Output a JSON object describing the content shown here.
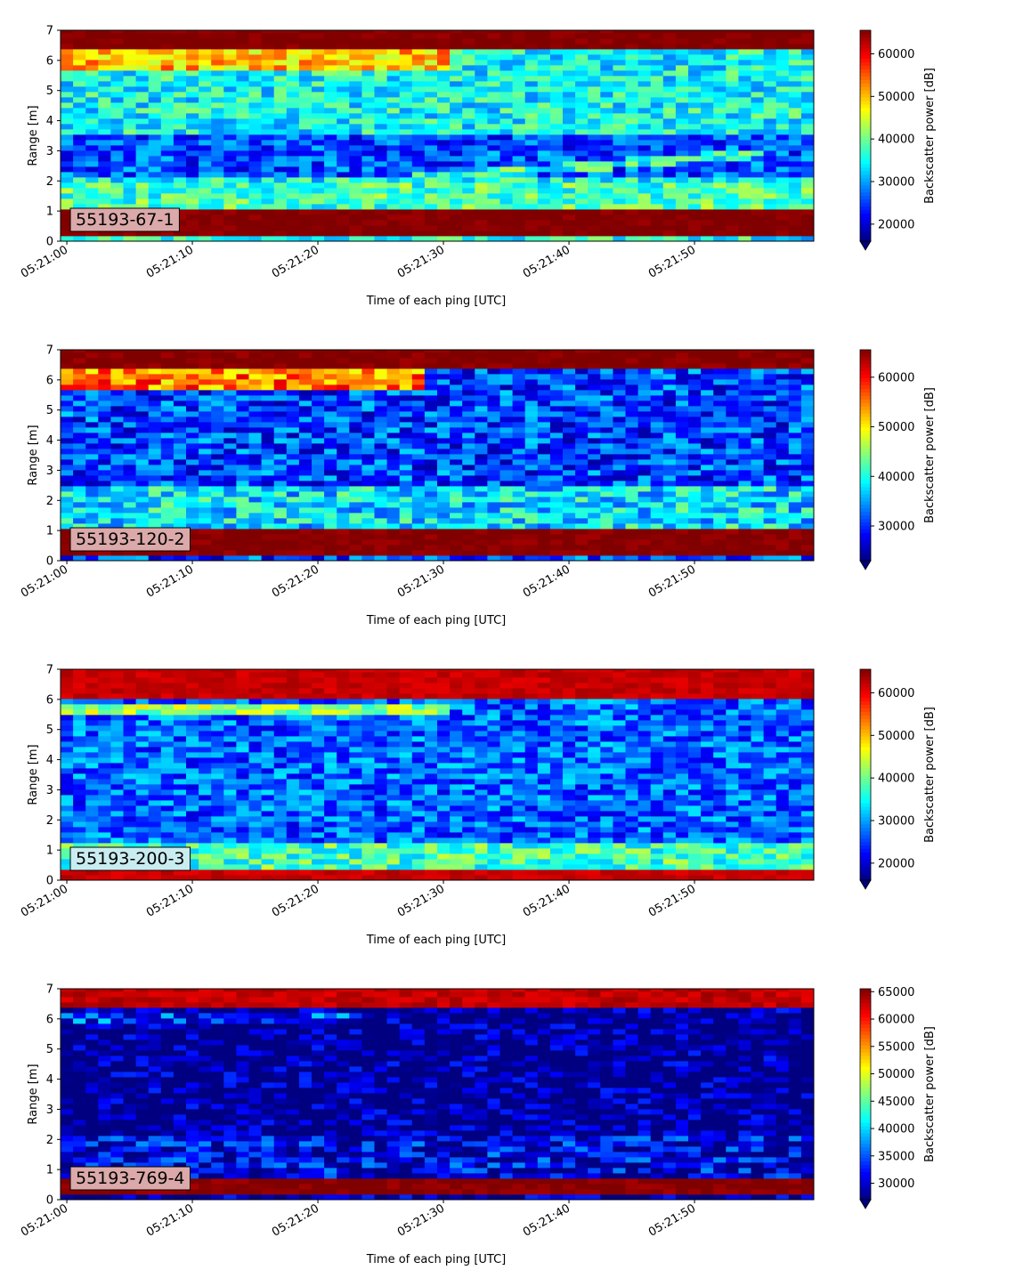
{
  "figure": {
    "background": "#ffffff"
  },
  "chart_data": [
    {
      "type": "heatmap",
      "panel_label": "55193-67-1",
      "label_box_color": "#dba9a9",
      "xlabel": "Time of each ping [UTC]",
      "ylabel": "Range [m]",
      "x_ticks": [
        "05:21:00",
        "05:21:10",
        "05:21:20",
        "05:21:30",
        "05:21:40",
        "05:21:50"
      ],
      "y_ticks": [
        0,
        1,
        2,
        3,
        4,
        5,
        6,
        7
      ],
      "ylim": [
        0,
        7
      ],
      "colorbar": {
        "label": "Backscatter power [dB]",
        "ticks": [
          20000,
          30000,
          40000,
          50000,
          60000
        ],
        "vmin": 16000,
        "vmax": 65535,
        "colormap": "jet",
        "extend": "min"
      },
      "features": [
        {
          "kind": "surface_band",
          "range_m": [
            6.35,
            7.0
          ],
          "level": 65535
        },
        {
          "kind": "near_surface_glow",
          "range_m": [
            5.7,
            6.35
          ],
          "level": 50000,
          "fades_after": "05:21:30"
        },
        {
          "kind": "noise_band",
          "range_m": [
            3.5,
            5.7
          ],
          "level": 35000
        },
        {
          "kind": "dark_band",
          "range_m": [
            2.2,
            3.5
          ],
          "level": 26000
        },
        {
          "kind": "rising_layer",
          "from": [
            "05:21:25",
            2.0
          ],
          "to": [
            "05:21:55",
            2.9
          ],
          "level": 37000
        },
        {
          "kind": "bright_band",
          "range_m": [
            1.15,
            2.0
          ],
          "level": 38000
        },
        {
          "kind": "near_field_band",
          "range_m": [
            0.2,
            1.15
          ],
          "level": 65535
        }
      ]
    },
    {
      "type": "heatmap",
      "panel_label": "55193-120-2",
      "label_box_color": "#dba9a9",
      "xlabel": "Time of each ping [UTC]",
      "ylabel": "Range [m]",
      "x_ticks": [
        "05:21:00",
        "05:21:10",
        "05:21:20",
        "05:21:30",
        "05:21:40",
        "05:21:50"
      ],
      "y_ticks": [
        0,
        1,
        2,
        3,
        4,
        5,
        6,
        7
      ],
      "ylim": [
        0,
        7
      ],
      "colorbar": {
        "label": "Backscatter power [dB]",
        "ticks": [
          30000,
          40000,
          50000,
          60000
        ],
        "vmin": 23000,
        "vmax": 65535,
        "colormap": "jet",
        "extend": "min"
      },
      "features": [
        {
          "kind": "surface_band",
          "range_m": [
            6.3,
            7.0
          ],
          "level": 65535
        },
        {
          "kind": "near_surface_glow",
          "range_m": [
            5.7,
            6.3
          ],
          "level": 55000,
          "fades_after": "05:21:28"
        },
        {
          "kind": "noise_band",
          "range_m": [
            2.5,
            5.7
          ],
          "level": 31000
        },
        {
          "kind": "bright_band",
          "range_m": [
            1.1,
            2.5
          ],
          "level": 38000
        },
        {
          "kind": "near_field_band",
          "range_m": [
            0.2,
            1.1
          ],
          "level": 65535
        }
      ]
    },
    {
      "type": "heatmap",
      "panel_label": "55193-200-3",
      "label_box_color": "#c9ecf0",
      "xlabel": "Time of each ping [UTC]",
      "ylabel": "Range [m]",
      "x_ticks": [
        "05:21:00",
        "05:21:10",
        "05:21:20",
        "05:21:30",
        "05:21:40",
        "05:21:50"
      ],
      "y_ticks": [
        0,
        1,
        2,
        3,
        4,
        5,
        6,
        7
      ],
      "ylim": [
        0,
        7
      ],
      "colorbar": {
        "label": "Backscatter power [dB]",
        "ticks": [
          20000,
          30000,
          40000,
          50000,
          60000
        ],
        "vmin": 16000,
        "vmax": 65535,
        "colormap": "jet",
        "extend": "min"
      },
      "features": [
        {
          "kind": "surface_band",
          "range_m": [
            6.1,
            7.0
          ],
          "level": 62000
        },
        {
          "kind": "near_surface_glow",
          "range_m": [
            5.55,
            5.8
          ],
          "level": 42000,
          "fades_after": "05:21:30"
        },
        {
          "kind": "noise_band",
          "range_m": [
            1.2,
            6.1
          ],
          "level": 27000
        },
        {
          "kind": "bright_band",
          "range_m": [
            0.35,
            1.2
          ],
          "level": 38000
        },
        {
          "kind": "near_field_band",
          "range_m": [
            0.0,
            0.35
          ],
          "level": 62000
        }
      ]
    },
    {
      "type": "heatmap",
      "panel_label": "55193-769-4",
      "label_box_color": "#dba9a9",
      "xlabel": "Time of each ping [UTC]",
      "ylabel": "Range [m]",
      "x_ticks": [
        "05:21:00",
        "05:21:10",
        "05:21:20",
        "05:21:30",
        "05:21:40",
        "05:21:50"
      ],
      "y_ticks": [
        0,
        1,
        2,
        3,
        4,
        5,
        6,
        7
      ],
      "ylim": [
        0,
        7
      ],
      "colorbar": {
        "label": "Backscatter power [dB]",
        "ticks": [
          30000,
          35000,
          40000,
          45000,
          50000,
          55000,
          60000,
          65000
        ],
        "vmin": 27000,
        "vmax": 65535,
        "colormap": "jet",
        "extend": "min"
      },
      "features": [
        {
          "kind": "surface_band",
          "range_m": [
            6.3,
            7.0
          ],
          "level": 63000
        },
        {
          "kind": "near_surface_glow",
          "range_m": [
            5.85,
            6.15
          ],
          "level": 34000,
          "fades_after": "05:21:23"
        },
        {
          "kind": "noise_band",
          "range_m": [
            2.2,
            6.3
          ],
          "level": 27000
        },
        {
          "kind": "bright_band",
          "range_m": [
            0.65,
            2.2
          ],
          "level": 31000
        },
        {
          "kind": "near_field_band",
          "range_m": [
            0.2,
            0.65
          ],
          "level": 65535
        }
      ]
    }
  ]
}
